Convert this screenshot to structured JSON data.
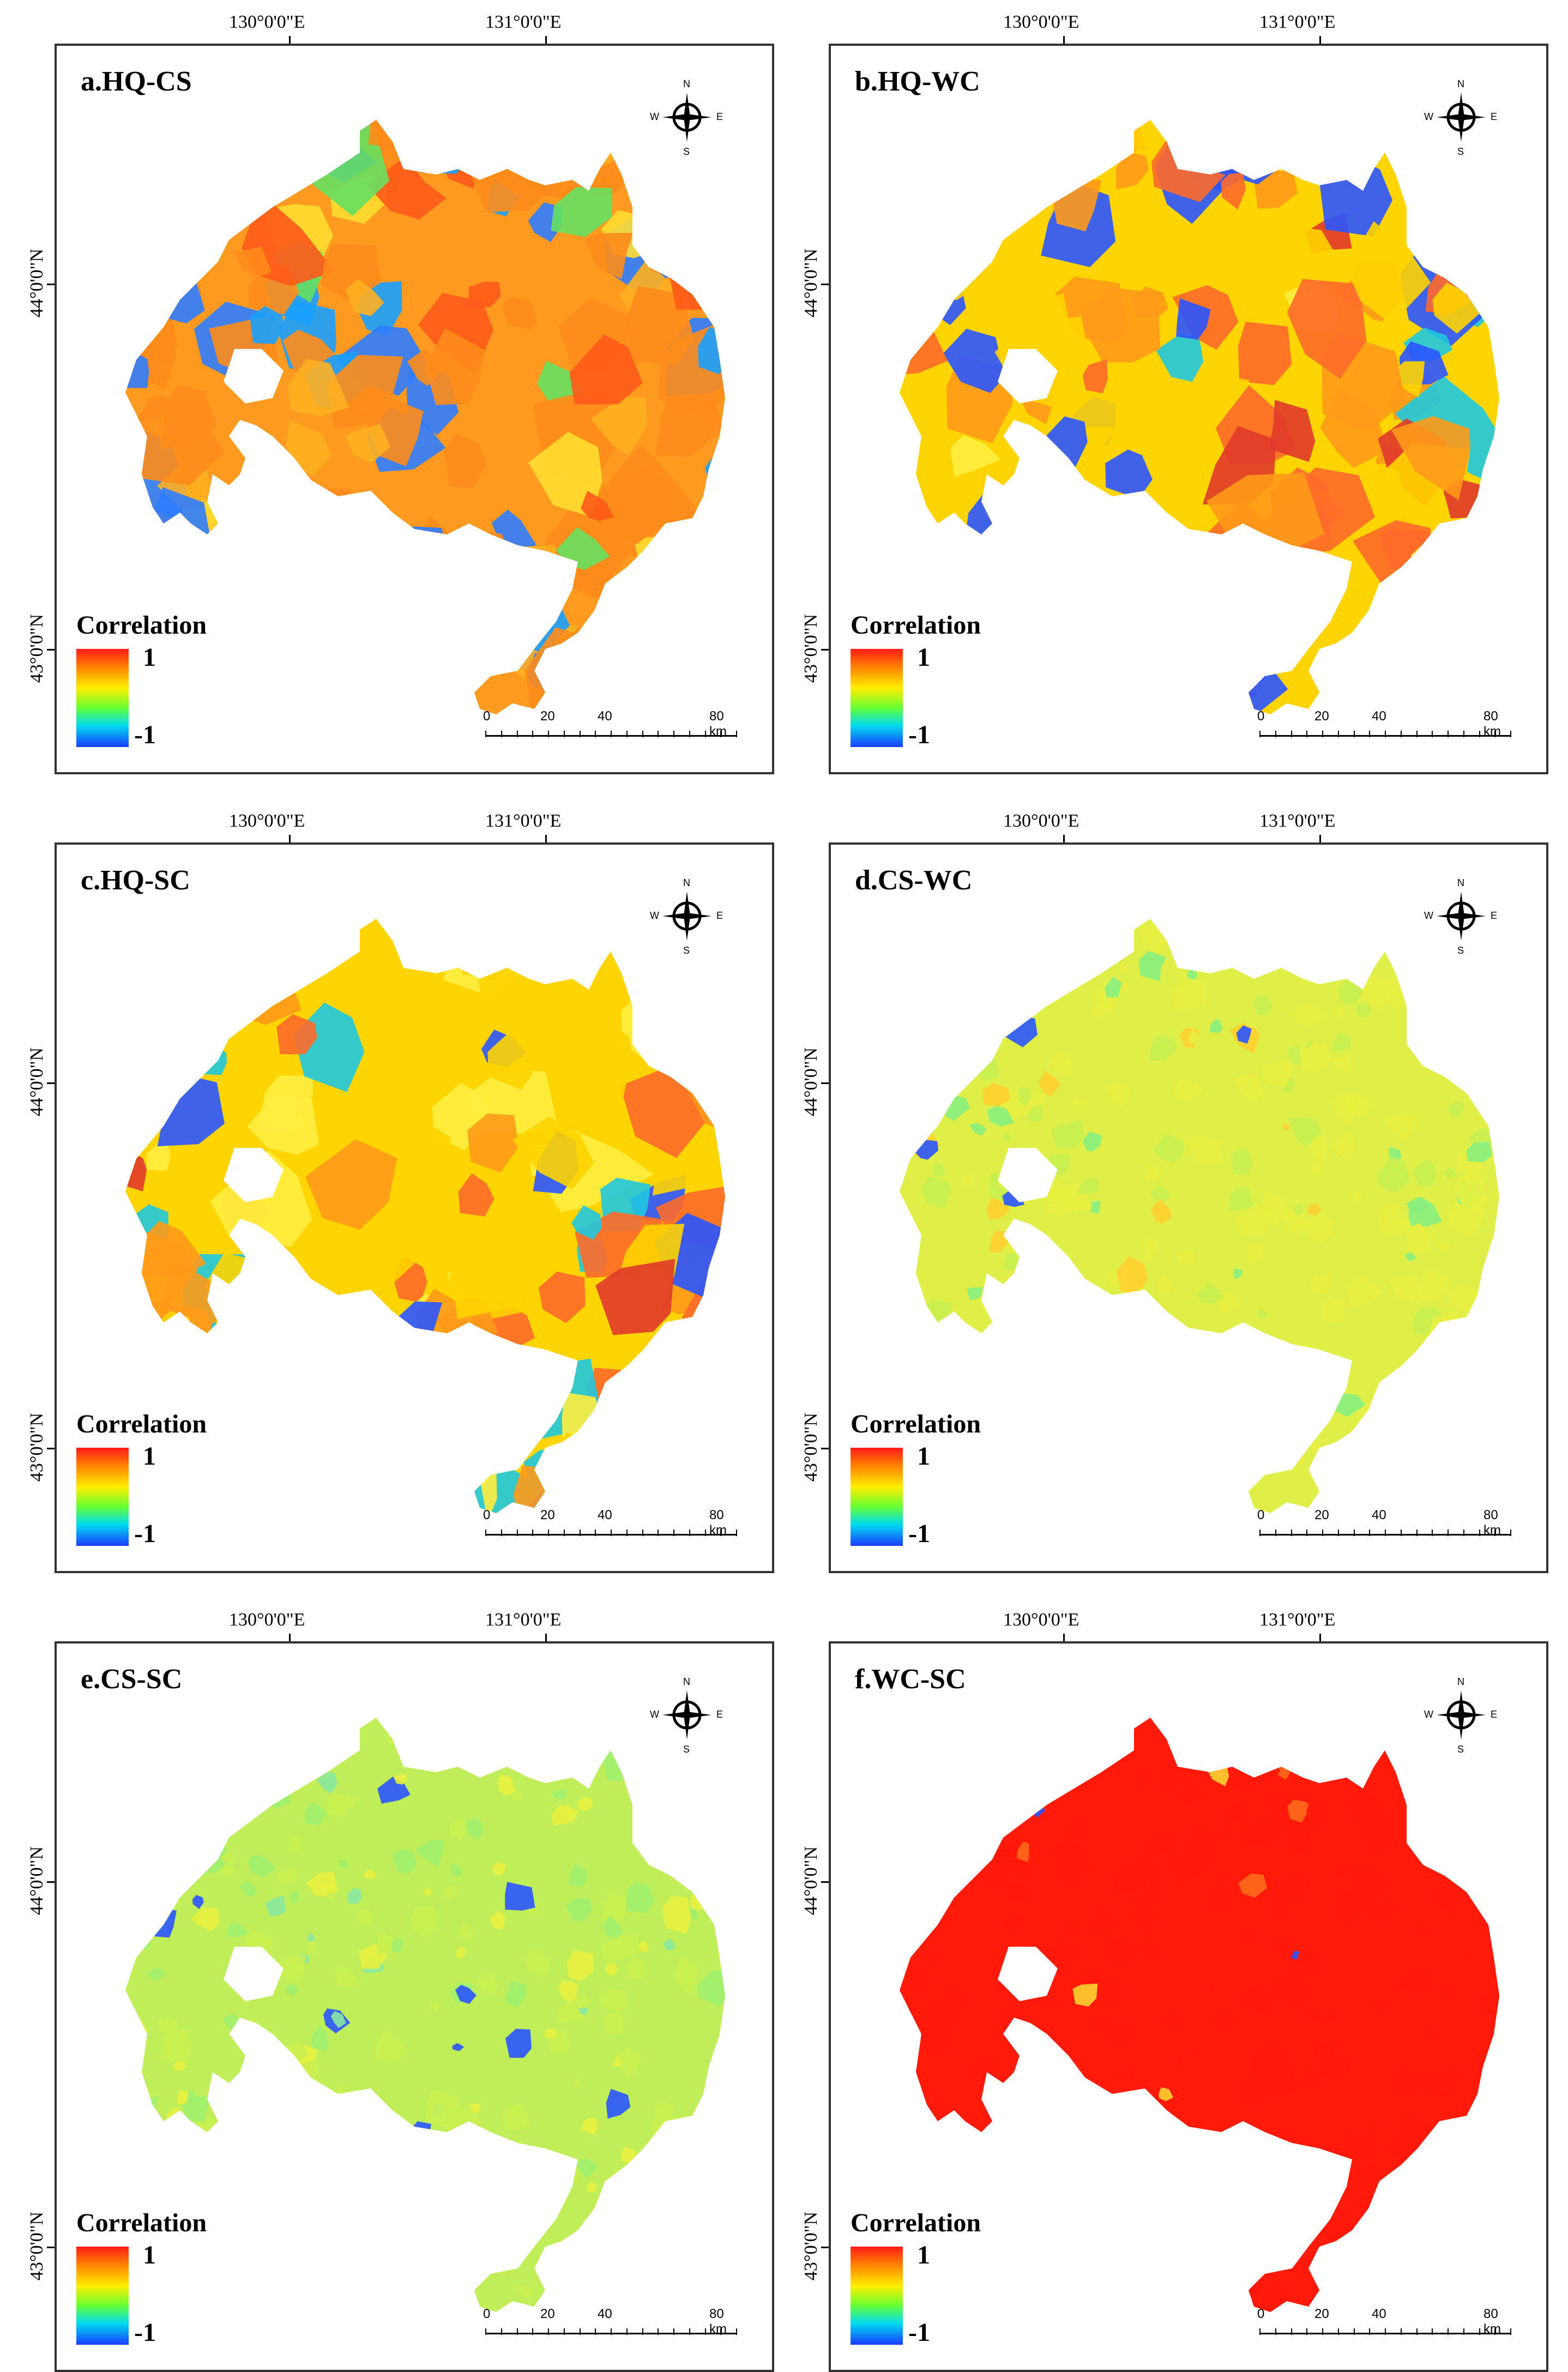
{
  "axes": {
    "lon_labels": [
      "130°0'0\"E",
      "131°0'0\"E"
    ],
    "lat_labels": [
      "44°0'0\"N",
      "43°0'0\"N"
    ]
  },
  "compass": {
    "n": "N",
    "s": "S",
    "e": "E",
    "w": "W"
  },
  "legend": {
    "title": "Correlation",
    "max": "1",
    "min": "-1"
  },
  "scalebar": {
    "ticks": [
      "0",
      "20",
      "40",
      "80 km"
    ]
  },
  "colors": {
    "high": "#ff1a1a",
    "mid": "#ffee00",
    "low": "#1a3cff"
  },
  "panels": [
    {
      "id": "a",
      "title": "a.HQ-CS",
      "pattern": "mixed-orange",
      "col": 0,
      "row": 0
    },
    {
      "id": "b",
      "title": "b.HQ-WC",
      "pattern": "blotchy",
      "col": 1,
      "row": 0
    },
    {
      "id": "c",
      "title": "c.HQ-SC",
      "pattern": "blotchy",
      "col": 0,
      "row": 1
    },
    {
      "id": "d",
      "title": "d.CS-WC",
      "pattern": "yellow-green",
      "col": 1,
      "row": 1
    },
    {
      "id": "e",
      "title": "e.CS-SC",
      "pattern": "green-yellow",
      "col": 0,
      "row": 2
    },
    {
      "id": "f",
      "title": "f.WC-SC",
      "pattern": "red",
      "col": 1,
      "row": 2
    }
  ]
}
